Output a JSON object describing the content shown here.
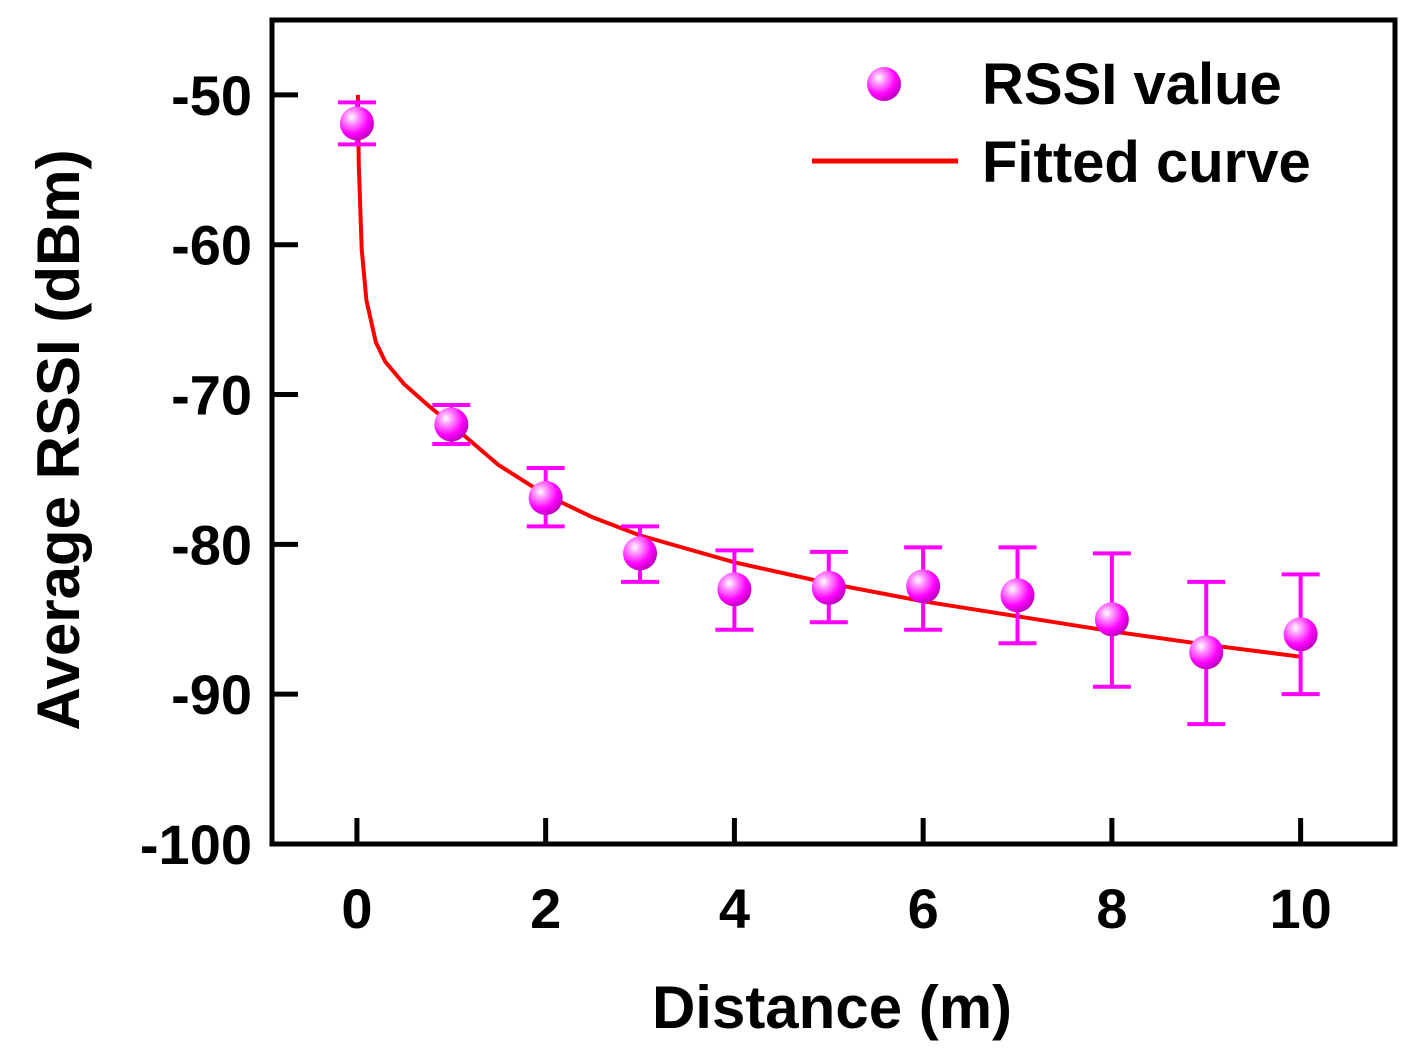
{
  "chart_data": {
    "type": "scatter",
    "title": "",
    "xlabel": "Distance (m)",
    "ylabel": "Average RSSI (dBm)",
    "xlim": [
      -0.9,
      11.0
    ],
    "ylim": [
      -100,
      -45
    ],
    "xticks": [
      0,
      2,
      4,
      6,
      8,
      10
    ],
    "xtick_labels": [
      "0",
      "2",
      "4",
      "6",
      "8",
      "10"
    ],
    "yticks": [
      -50,
      -60,
      -70,
      -80,
      -90,
      -100
    ],
    "ytick_labels": [
      "-50",
      "-60",
      "-70",
      "-80",
      "-90",
      "-100"
    ],
    "grid": false,
    "legend_position": "top-right",
    "colors": {
      "points": "#ff00ff",
      "fit": "#ff0000",
      "axes": "#000000"
    },
    "series": [
      {
        "name": "RSSI value",
        "kind": "scatter-errorbar",
        "x": [
          0,
          1,
          2,
          3,
          4,
          5,
          6,
          7,
          8,
          9,
          10
        ],
        "y": [
          -51.9,
          -72.0,
          -76.9,
          -80.6,
          -83.0,
          -82.9,
          -82.8,
          -83.4,
          -85.0,
          -87.2,
          -86.0
        ],
        "yerr_low": [
          1.4,
          1.3,
          1.9,
          1.9,
          2.7,
          2.3,
          2.9,
          3.2,
          4.5,
          4.8,
          4.0
        ],
        "yerr_high": [
          1.4,
          1.3,
          2.0,
          1.8,
          2.6,
          2.4,
          2.6,
          3.2,
          4.4,
          4.7,
          4.0
        ]
      },
      {
        "name": "Fitted curve",
        "kind": "line",
        "x": [
          0.01,
          0.02,
          0.05,
          0.1,
          0.2,
          0.3,
          0.5,
          0.75,
          1,
          1.5,
          2,
          2.5,
          3,
          4,
          5,
          6,
          7,
          8,
          9,
          10
        ],
        "y": [
          -50.0,
          -54.7,
          -60.3,
          -63.7,
          -66.5,
          -67.8,
          -69.3,
          -70.7,
          -72.0,
          -74.7,
          -76.7,
          -78.2,
          -79.4,
          -81.2,
          -82.6,
          -83.8,
          -84.8,
          -85.8,
          -86.7,
          -87.5
        ]
      }
    ]
  }
}
